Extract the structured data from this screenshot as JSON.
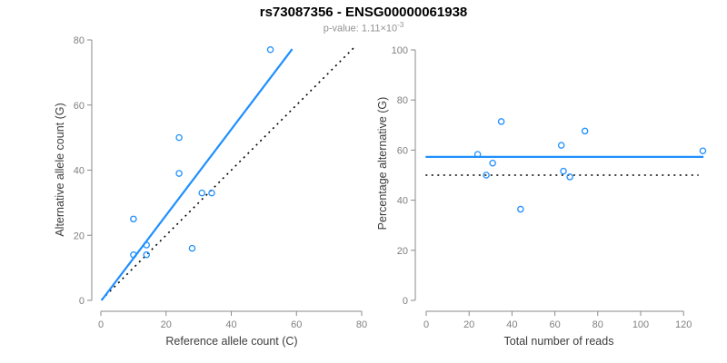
{
  "header": {
    "title": "rs73087356 - ENSG00000061938",
    "p_value_base": "p-value: 1.11×10",
    "p_value_exponent": "-3"
  },
  "colors": {
    "accent_blue": "#1E8FFF",
    "reference_black": "#000000",
    "tick_label": "#808080",
    "axis_line": "#8a8a8a",
    "axis_title": "#3c3c3c",
    "subtitle_gray": "#919191",
    "background": "#ffffff"
  },
  "chart_data": [
    {
      "type": "scatter",
      "panel": "allele-counts",
      "xlabel": "Reference allele count (C)",
      "ylabel": "Alternative allele count (G)",
      "xlim": [
        0,
        80
      ],
      "ylim": [
        0,
        80
      ],
      "xticks": [
        0,
        20,
        40,
        60,
        80
      ],
      "yticks": [
        0,
        20,
        40,
        60,
        80
      ],
      "grid": false,
      "legend": "none",
      "points": [
        [
          10,
          14
        ],
        [
          10,
          25
        ],
        [
          14,
          14
        ],
        [
          14,
          17
        ],
        [
          24,
          39
        ],
        [
          24,
          50
        ],
        [
          28,
          16
        ],
        [
          31,
          33
        ],
        [
          34,
          33
        ],
        [
          52,
          77
        ]
      ],
      "lines": [
        {
          "name": "identity-line",
          "role": "y = x reference",
          "x1": 0.2,
          "y1": 0.2,
          "x2": 78.3,
          "y2": 78.3,
          "dash": true,
          "color_key": "reference_black"
        },
        {
          "name": "regression-line",
          "role": "fitted allelic-imbalance line",
          "x1": 0.2,
          "y1": 0,
          "x2": 58.7,
          "y2": 77.2,
          "dash": false,
          "color_key": "accent_blue"
        }
      ]
    },
    {
      "type": "scatter",
      "panel": "percentage-vs-coverage",
      "xlabel": "Total number of reads",
      "ylabel": "Percentage alternative (G)",
      "xlim": [
        0,
        130
      ],
      "ylim": [
        0,
        100
      ],
      "xticks": [
        0,
        20,
        40,
        60,
        80,
        100,
        120
      ],
      "yticks": [
        0,
        20,
        40,
        60,
        80,
        100
      ],
      "grid": false,
      "legend": "none",
      "points": [
        [
          24,
          58.3
        ],
        [
          28,
          50
        ],
        [
          31,
          54.8
        ],
        [
          35,
          71.4
        ],
        [
          44,
          36.4
        ],
        [
          63,
          61.9
        ],
        [
          64,
          51.6
        ],
        [
          67,
          49.3
        ],
        [
          74,
          67.6
        ],
        [
          129,
          59.7
        ]
      ],
      "lines": [
        {
          "name": "fifty-percent-line",
          "role": "50% reference",
          "x1": -0.3,
          "y1": 50,
          "x2": 127,
          "y2": 50,
          "dash": true,
          "color_key": "reference_black"
        },
        {
          "name": "mean-percentage-line",
          "role": "mean alternative percentage",
          "x1": -0.3,
          "y1": 57.3,
          "x2": 129.3,
          "y2": 57.3,
          "dash": false,
          "color_key": "accent_blue"
        }
      ]
    }
  ]
}
